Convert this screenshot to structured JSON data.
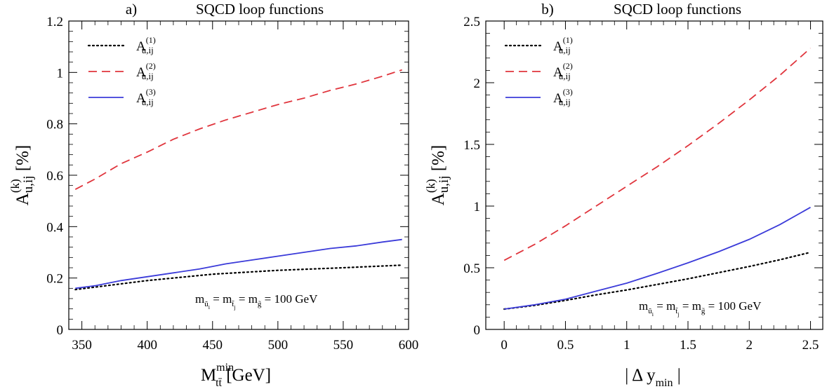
{
  "chart_data": [
    {
      "type": "line",
      "panel_label": "a)",
      "title": "SQCD loop functions",
      "xlabel": "M",
      "xlabel_sub": "tt̄",
      "xlabel_sup": "min",
      "xlabel_unit": "[GeV]",
      "ylabel": "A",
      "ylabel_sup": "(k)",
      "ylabel_sub": "u,ij",
      "ylabel_unit": "[%]",
      "xlim": [
        340,
        600
      ],
      "ylim": [
        0,
        1.2
      ],
      "xticks": [
        350,
        400,
        450,
        500,
        550,
        600
      ],
      "xtick_labels": [
        "350",
        "400",
        "450",
        "500",
        "550",
        "600"
      ],
      "yticks": [
        0,
        0.2,
        0.4,
        0.6,
        0.8,
        1.0,
        1.2
      ],
      "ytick_labels": [
        "0",
        "0.2",
        "0.4",
        "0.6",
        "0.8",
        "1",
        "1.2"
      ],
      "grid": false,
      "legend_position": "top-left",
      "annotation": {
        "m1": "m",
        "m1_sub": "ũ",
        "m1_subsub": "i",
        "eq": " = ",
        "m2": "m",
        "m2_sub": "t̃",
        "m2_subsub": "j",
        "m3": "m",
        "m3_sub": "g̃",
        "value": " = 100 GeV"
      },
      "series": [
        {
          "name": "A",
          "name_sup": "(1)",
          "name_sub": "u,ij",
          "style": "dotted",
          "color": "#000000",
          "x": [
            345,
            400,
            450,
            500,
            550,
            595
          ],
          "y": [
            0.155,
            0.19,
            0.215,
            0.23,
            0.24,
            0.25
          ]
        },
        {
          "name": "A",
          "name_sup": "(2)",
          "name_sub": "u,ij",
          "style": "dashed",
          "color": "#e0353d",
          "x": [
            345,
            360,
            380,
            400,
            420,
            440,
            460,
            480,
            500,
            520,
            540,
            560,
            580,
            595
          ],
          "y": [
            0.545,
            0.585,
            0.645,
            0.69,
            0.74,
            0.78,
            0.815,
            0.845,
            0.875,
            0.9,
            0.93,
            0.955,
            0.985,
            1.01
          ]
        },
        {
          "name": "A",
          "name_sup": "(3)",
          "name_sub": "u,ij",
          "style": "solid",
          "color": "#3b3bd9",
          "x": [
            345,
            360,
            380,
            400,
            420,
            440,
            460,
            480,
            500,
            520,
            540,
            560,
            580,
            595
          ],
          "y": [
            0.16,
            0.17,
            0.19,
            0.205,
            0.22,
            0.235,
            0.255,
            0.27,
            0.285,
            0.3,
            0.315,
            0.325,
            0.34,
            0.35
          ]
        }
      ]
    },
    {
      "type": "line",
      "panel_label": "b)",
      "title": "SQCD loop functions",
      "xlabel": "| Δ y",
      "xlabel_sub": "min",
      "xlabel_tail": " |",
      "ylabel": "A",
      "ylabel_sup": "(k)",
      "ylabel_sub": "u,ij",
      "ylabel_unit": "[%]",
      "xlim": [
        -0.15,
        2.6
      ],
      "ylim": [
        0,
        2.5
      ],
      "xticks": [
        0,
        0.5,
        1,
        1.5,
        2,
        2.5
      ],
      "xtick_labels": [
        "0",
        "0.5",
        "1",
        "1.5",
        "2",
        "2.5"
      ],
      "yticks": [
        0,
        0.5,
        1,
        1.5,
        2,
        2.5
      ],
      "ytick_labels": [
        "0",
        "0.5",
        "1",
        "1.5",
        "2",
        "2.5"
      ],
      "grid": false,
      "legend_position": "top-left",
      "annotation": {
        "m1": "m",
        "m1_sub": "ũ",
        "m1_subsub": "i",
        "eq": " = ",
        "m2": "m",
        "m2_sub": "t̃",
        "m2_subsub": "j",
        "m3": "m",
        "m3_sub": "g̃",
        "value": " = 100 GeV"
      },
      "series": [
        {
          "name": "A",
          "name_sup": "(1)",
          "name_sub": "u,ij",
          "style": "dotted",
          "color": "#000000",
          "x": [
            0,
            0.25,
            0.5,
            0.75,
            1.0,
            1.25,
            1.5,
            1.75,
            2.0,
            2.25,
            2.5
          ],
          "y": [
            0.165,
            0.195,
            0.235,
            0.28,
            0.32,
            0.365,
            0.41,
            0.46,
            0.51,
            0.565,
            0.625
          ]
        },
        {
          "name": "A",
          "name_sup": "(2)",
          "name_sub": "u,ij",
          "style": "dashed",
          "color": "#e0353d",
          "x": [
            0,
            0.25,
            0.5,
            0.75,
            1.0,
            1.25,
            1.5,
            1.75,
            2.0,
            2.25,
            2.5
          ],
          "y": [
            0.56,
            0.69,
            0.84,
            1.0,
            1.16,
            1.32,
            1.49,
            1.67,
            1.86,
            2.06,
            2.28
          ]
        },
        {
          "name": "A",
          "name_sup": "(3)",
          "name_sub": "u,ij",
          "style": "solid",
          "color": "#3b3bd9",
          "x": [
            0,
            0.25,
            0.5,
            0.75,
            1.0,
            1.25,
            1.5,
            1.75,
            2.0,
            2.25,
            2.5
          ],
          "y": [
            0.165,
            0.2,
            0.245,
            0.31,
            0.375,
            0.455,
            0.54,
            0.63,
            0.73,
            0.85,
            0.99
          ]
        }
      ]
    }
  ]
}
